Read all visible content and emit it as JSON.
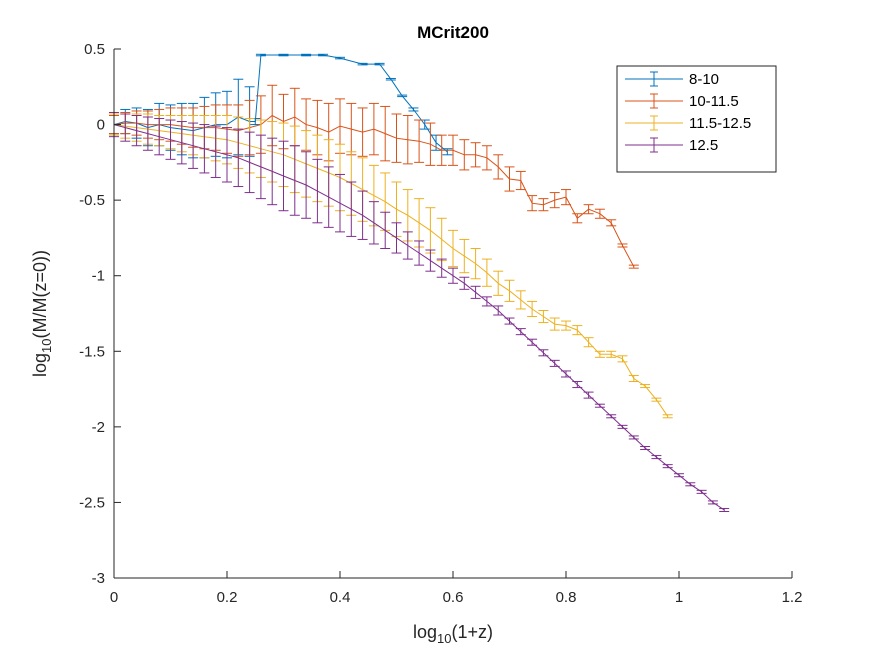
{
  "chart_data": {
    "type": "line",
    "title": "MCrit200",
    "xlabel": {
      "base": "log",
      "sub": "10",
      "rest": "(1+z)"
    },
    "ylabel": {
      "base": "log",
      "sub": "10",
      "rest": "(M/M(z=0))"
    },
    "xlim": [
      0,
      1.2
    ],
    "ylim": [
      -3,
      0.5
    ],
    "xticks": [
      0,
      0.2,
      0.4,
      0.6,
      0.8,
      1,
      1.2
    ],
    "xtick_labels": [
      "0",
      "0.2",
      "0.4",
      "0.6",
      "0.8",
      "1",
      "1.2"
    ],
    "yticks": [
      -3,
      -2.5,
      -2,
      -1.5,
      -1,
      -0.5,
      0,
      0.5
    ],
    "ytick_labels": [
      "-3",
      "-2.5",
      "-2",
      "-1.5",
      "-1",
      "-0.5",
      "0",
      "0.5"
    ],
    "grid": false,
    "legend_position": "top-right",
    "series": [
      {
        "name": "8-10",
        "color": "#0072BD",
        "x": [
          0,
          0.02,
          0.04,
          0.06,
          0.08,
          0.1,
          0.12,
          0.14,
          0.16,
          0.18,
          0.2,
          0.22,
          0.24,
          0.25,
          0.26,
          0.3,
          0.34,
          0.37,
          0.4,
          0.44,
          0.47,
          0.49,
          0.51,
          0.53,
          0.55,
          0.57,
          0.59
        ],
        "y": [
          0,
          0.02,
          0.01,
          -0.02,
          0.0,
          -0.02,
          -0.03,
          -0.04,
          -0.02,
          0.0,
          0.0,
          0.05,
          0.02,
          0.02,
          0.46,
          0.46,
          0.46,
          0.46,
          0.44,
          0.4,
          0.4,
          0.3,
          0.19,
          0.1,
          0.0,
          -0.12,
          -0.18
        ],
        "err": [
          0.06,
          0.08,
          0.1,
          0.12,
          0.14,
          0.15,
          0.17,
          0.18,
          0.2,
          0.21,
          0.22,
          0.25,
          0.23,
          0.02,
          0.005,
          0.005,
          0.005,
          0.005,
          0.005,
          0.005,
          0.005,
          0.005,
          0.005,
          0.01,
          0.03,
          0.05,
          0.02
        ]
      },
      {
        "name": "10-11.5",
        "color": "#D95319",
        "x": [
          0,
          0.02,
          0.04,
          0.06,
          0.08,
          0.1,
          0.12,
          0.14,
          0.16,
          0.18,
          0.2,
          0.22,
          0.24,
          0.26,
          0.28,
          0.3,
          0.32,
          0.34,
          0.36,
          0.38,
          0.4,
          0.42,
          0.44,
          0.46,
          0.48,
          0.5,
          0.52,
          0.54,
          0.56,
          0.58,
          0.6,
          0.62,
          0.64,
          0.66,
          0.68,
          0.7,
          0.72,
          0.74,
          0.76,
          0.78,
          0.8,
          0.82,
          0.84,
          0.86,
          0.88,
          0.9,
          0.92
        ],
        "y": [
          0,
          0.01,
          0.01,
          0.0,
          0.0,
          0.0,
          -0.01,
          -0.02,
          -0.02,
          -0.02,
          -0.03,
          -0.04,
          -0.02,
          0.0,
          0.06,
          0.02,
          0.05,
          0.0,
          -0.02,
          -0.05,
          -0.01,
          -0.03,
          -0.05,
          -0.03,
          -0.06,
          -0.09,
          -0.1,
          -0.11,
          -0.13,
          -0.17,
          -0.17,
          -0.2,
          -0.2,
          -0.22,
          -0.28,
          -0.36,
          -0.37,
          -0.52,
          -0.53,
          -0.5,
          -0.48,
          -0.62,
          -0.56,
          -0.59,
          -0.65,
          -0.8,
          -0.94
        ],
        "err": [
          0.06,
          0.07,
          0.08,
          0.09,
          0.1,
          0.11,
          0.12,
          0.13,
          0.14,
          0.15,
          0.16,
          0.17,
          0.18,
          0.19,
          0.2,
          0.18,
          0.19,
          0.17,
          0.18,
          0.19,
          0.18,
          0.17,
          0.16,
          0.17,
          0.18,
          0.16,
          0.16,
          0.14,
          0.14,
          0.1,
          0.1,
          0.1,
          0.08,
          0.08,
          0.08,
          0.08,
          0.06,
          0.05,
          0.04,
          0.05,
          0.05,
          0.03,
          0.03,
          0.03,
          0.02,
          0.01,
          0.01
        ]
      },
      {
        "name": "11.5-12.5",
        "color": "#EDB120",
        "x": [
          0,
          0.02,
          0.04,
          0.06,
          0.08,
          0.1,
          0.12,
          0.14,
          0.16,
          0.18,
          0.2,
          0.22,
          0.24,
          0.26,
          0.28,
          0.3,
          0.32,
          0.34,
          0.36,
          0.38,
          0.4,
          0.42,
          0.44,
          0.46,
          0.48,
          0.5,
          0.52,
          0.54,
          0.56,
          0.58,
          0.6,
          0.62,
          0.64,
          0.66,
          0.68,
          0.7,
          0.72,
          0.74,
          0.76,
          0.78,
          0.8,
          0.82,
          0.84,
          0.86,
          0.88,
          0.9,
          0.92,
          0.94,
          0.96,
          0.98
        ],
        "y": [
          0,
          -0.01,
          -0.02,
          -0.03,
          -0.04,
          -0.05,
          -0.06,
          -0.07,
          -0.08,
          -0.09,
          -0.1,
          -0.12,
          -0.14,
          -0.16,
          -0.18,
          -0.2,
          -0.23,
          -0.26,
          -0.29,
          -0.32,
          -0.35,
          -0.39,
          -0.43,
          -0.47,
          -0.51,
          -0.56,
          -0.6,
          -0.65,
          -0.7,
          -0.76,
          -0.82,
          -0.87,
          -0.92,
          -0.98,
          -1.05,
          -1.1,
          -1.16,
          -1.22,
          -1.27,
          -1.32,
          -1.33,
          -1.36,
          -1.44,
          -1.52,
          -1.52,
          -1.55,
          -1.68,
          -1.73,
          -1.82,
          -1.93
        ],
        "err": [
          0.07,
          0.08,
          0.09,
          0.1,
          0.1,
          0.11,
          0.12,
          0.13,
          0.14,
          0.15,
          0.16,
          0.17,
          0.18,
          0.19,
          0.2,
          0.21,
          0.22,
          0.22,
          0.22,
          0.22,
          0.22,
          0.21,
          0.21,
          0.2,
          0.19,
          0.18,
          0.17,
          0.16,
          0.15,
          0.14,
          0.12,
          0.11,
          0.1,
          0.09,
          0.08,
          0.07,
          0.06,
          0.05,
          0.04,
          0.04,
          0.03,
          0.03,
          0.03,
          0.02,
          0.02,
          0.02,
          0.02,
          0.01,
          0.01,
          0.01
        ]
      },
      {
        "name": "12.5",
        "color": "#7E2F8E",
        "x": [
          0,
          0.02,
          0.04,
          0.06,
          0.08,
          0.1,
          0.12,
          0.14,
          0.16,
          0.18,
          0.2,
          0.22,
          0.24,
          0.26,
          0.28,
          0.3,
          0.32,
          0.34,
          0.36,
          0.38,
          0.4,
          0.42,
          0.44,
          0.46,
          0.48,
          0.5,
          0.52,
          0.54,
          0.56,
          0.58,
          0.6,
          0.62,
          0.64,
          0.66,
          0.68,
          0.7,
          0.72,
          0.74,
          0.76,
          0.78,
          0.8,
          0.82,
          0.84,
          0.86,
          0.88,
          0.9,
          0.92,
          0.94,
          0.96,
          0.98,
          1.0,
          1.02,
          1.04,
          1.06,
          1.08
        ],
        "y": [
          0,
          -0.02,
          -0.04,
          -0.06,
          -0.08,
          -0.1,
          -0.12,
          -0.14,
          -0.16,
          -0.18,
          -0.2,
          -0.22,
          -0.25,
          -0.28,
          -0.31,
          -0.34,
          -0.37,
          -0.4,
          -0.44,
          -0.48,
          -0.52,
          -0.56,
          -0.6,
          -0.65,
          -0.7,
          -0.75,
          -0.8,
          -0.85,
          -0.9,
          -0.95,
          -1.0,
          -1.05,
          -1.11,
          -1.17,
          -1.23,
          -1.3,
          -1.37,
          -1.44,
          -1.51,
          -1.58,
          -1.65,
          -1.72,
          -1.79,
          -1.86,
          -1.93,
          -2.0,
          -2.07,
          -2.14,
          -2.2,
          -2.26,
          -2.32,
          -2.38,
          -2.43,
          -2.5,
          -2.55
        ],
        "err": [
          0.08,
          0.09,
          0.1,
          0.11,
          0.12,
          0.13,
          0.14,
          0.15,
          0.16,
          0.17,
          0.18,
          0.19,
          0.2,
          0.21,
          0.22,
          0.23,
          0.23,
          0.22,
          0.21,
          0.2,
          0.19,
          0.18,
          0.16,
          0.14,
          0.12,
          0.1,
          0.09,
          0.08,
          0.07,
          0.06,
          0.05,
          0.04,
          0.04,
          0.03,
          0.03,
          0.02,
          0.02,
          0.02,
          0.02,
          0.02,
          0.02,
          0.02,
          0.02,
          0.01,
          0.01,
          0.01,
          0.01,
          0.01,
          0.01,
          0.01,
          0.01,
          0.01,
          0.01,
          0.01,
          0.01
        ]
      }
    ]
  }
}
